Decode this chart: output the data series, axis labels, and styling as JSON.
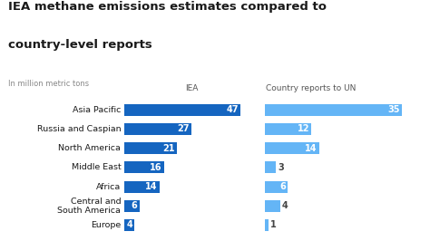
{
  "title_line1": "IEA methane emissions estimates compared to",
  "title_line2": "country-level reports",
  "subtitle": "In million metric tons",
  "col1_label": "IEA",
  "col2_label": "Country reports to UN",
  "categories": [
    "Asia Pacific",
    "Russia and Caspian",
    "North America",
    "Middle East",
    "Africa",
    "Central and\nSouth America",
    "Europe"
  ],
  "iea_values": [
    47,
    27,
    21,
    16,
    14,
    6,
    4
  ],
  "un_values": [
    35,
    12,
    14,
    3,
    6,
    4,
    1
  ],
  "iea_color": "#1565c0",
  "un_color": "#64b5f6",
  "text_color": "#1a1a1a",
  "subtitle_color": "#888888",
  "header_color": "#555555",
  "val_color_light": "#444444",
  "bg_color": "#ffffff",
  "fig_width": 4.74,
  "fig_height": 2.66,
  "dpi": 100
}
